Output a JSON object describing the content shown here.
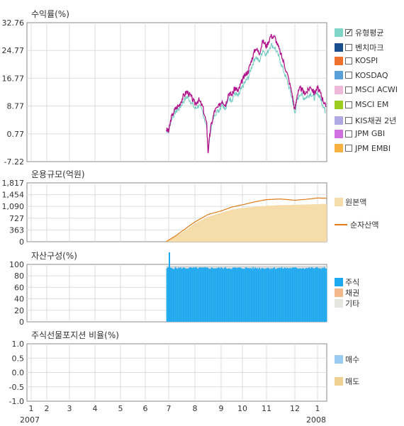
{
  "colors": {
    "grid": "#dddddd",
    "axis": "#888888",
    "return_line": "#b0148c",
    "benchmark_line": "#6fcac0",
    "nav_line": "#e07a12",
    "aum_area": "#f5dca8",
    "stock_bar": "#1ca9f0",
    "bond_bar": "#f4b98a",
    "other_bar": "#d9d9d9",
    "buy": "#99ccf0",
    "sell": "#f0d090"
  },
  "chart_data": [
    {
      "type": "line",
      "title": "수익률(%)",
      "yticks": [
        "32.76",
        "24.77",
        "16.77",
        "8.77",
        "0.77",
        "-7.22"
      ],
      "ylim": [
        -7.22,
        32.76
      ],
      "x_axis": "month index 1..13.5 (1 = Jan 2007)",
      "series": [
        {
          "name": "유형평균",
          "x": [
            6.9,
            7.0,
            7.1,
            7.25,
            7.4,
            7.55,
            7.7,
            7.85,
            8.0,
            8.15,
            8.3,
            8.45,
            8.5,
            8.6,
            8.75,
            8.9,
            9.05,
            9.2,
            9.35,
            9.5,
            9.65,
            9.8,
            9.95,
            10.1,
            10.25,
            10.4,
            10.55,
            10.7,
            10.85,
            11.0,
            11.15,
            11.3,
            11.45,
            11.6,
            11.75,
            11.9,
            12.0,
            12.1,
            12.25,
            12.4,
            12.55,
            12.7,
            12.85,
            13.0,
            13.15,
            13.3,
            13.45
          ],
          "values": [
            2.0,
            1.5,
            5.5,
            8.0,
            9.0,
            11.5,
            13.0,
            11.5,
            9.5,
            10.5,
            8.5,
            3.5,
            -4.5,
            2.5,
            7.5,
            8.5,
            10.5,
            9.0,
            12.5,
            12.0,
            14.0,
            13.0,
            15.5,
            17.5,
            19.0,
            22.5,
            25.5,
            24.0,
            27.5,
            26.0,
            29.0,
            28.5,
            25.0,
            21.5,
            17.5,
            12.5,
            7.5,
            12.0,
            14.0,
            12.5,
            13.0,
            14.5,
            12.5,
            14.0,
            12.5,
            10.5,
            8.5
          ]
        },
        {
          "name": "benchmark",
          "x": [
            6.9,
            7.0,
            7.1,
            7.25,
            7.4,
            7.55,
            7.7,
            7.85,
            8.0,
            8.15,
            8.3,
            8.45,
            8.5,
            8.6,
            8.75,
            8.9,
            9.05,
            9.2,
            9.35,
            9.5,
            9.65,
            9.8,
            9.95,
            10.1,
            10.25,
            10.4,
            10.55,
            10.7,
            10.85,
            11.0,
            11.15,
            11.3,
            11.45,
            11.6,
            11.75,
            11.9,
            12.0,
            12.1,
            12.25,
            12.4,
            12.55,
            12.7,
            12.85,
            13.0,
            13.15,
            13.3,
            13.45
          ],
          "values": [
            2.0,
            1.5,
            5.0,
            7.0,
            8.0,
            10.0,
            11.5,
            10.0,
            8.0,
            9.0,
            7.0,
            2.5,
            -4.0,
            2.0,
            6.5,
            7.5,
            9.5,
            8.0,
            11.0,
            10.5,
            12.5,
            11.5,
            13.5,
            15.5,
            17.0,
            20.5,
            23.0,
            21.5,
            25.0,
            23.5,
            26.5,
            25.5,
            22.5,
            19.0,
            15.5,
            11.0,
            6.5,
            10.5,
            12.5,
            11.0,
            11.5,
            12.5,
            11.0,
            12.5,
            11.0,
            9.0,
            7.0
          ]
        }
      ]
    },
    {
      "type": "area",
      "title": "운용규모(억원)",
      "yticks": [
        "1,817",
        "1,454",
        "1,090",
        "727",
        "363",
        "0"
      ],
      "ylim": [
        0,
        1817
      ],
      "series": [
        {
          "name": "원본액",
          "x": [
            6.9,
            7.3,
            7.7,
            8.0,
            8.5,
            9.0,
            9.5,
            10.0,
            10.5,
            11.0,
            11.5,
            12.0,
            12.5,
            13.0,
            13.5
          ],
          "values": [
            0,
            180,
            390,
            560,
            770,
            890,
            990,
            1040,
            1080,
            1110,
            1130,
            1140,
            1150,
            1160,
            1170
          ]
        },
        {
          "name": "순자산액",
          "x": [
            6.9,
            7.3,
            7.7,
            8.0,
            8.5,
            9.0,
            9.5,
            10.0,
            10.5,
            11.0,
            11.5,
            12.0,
            12.5,
            13.0,
            13.5
          ],
          "values": [
            0,
            200,
            440,
            610,
            840,
            950,
            1070,
            1140,
            1230,
            1300,
            1320,
            1280,
            1310,
            1350,
            1340
          ]
        }
      ]
    },
    {
      "type": "bar",
      "title": "자산구성(%)",
      "yticks": [
        "100",
        "80",
        "60",
        "40",
        "20",
        "0"
      ],
      "ylim": [
        0,
        105
      ],
      "x_start": 6.9,
      "x_end": 13.5,
      "spike": {
        "x": 7.0,
        "value": 120
      },
      "series": [
        {
          "name": "주식",
          "values": 96
        },
        {
          "name": "채권",
          "values": 0
        },
        {
          "name": "기타",
          "values": 4
        }
      ]
    },
    {
      "type": "bar",
      "title": "주식선물포지션 비율(%)",
      "yticks": [
        "1.0",
        "0.5",
        "0.0",
        "-0.5",
        "-1.0"
      ],
      "ylim": [
        -1.0,
        1.0
      ],
      "series": [
        {
          "name": "매수",
          "values": []
        },
        {
          "name": "매도",
          "values": []
        }
      ]
    }
  ],
  "x_axis": {
    "ticks": [
      "1",
      "2",
      "3",
      "4",
      "5",
      "6",
      "7",
      "8",
      "9",
      "10",
      "11",
      "12",
      "2008"
    ],
    "ticks_last": "1",
    "year_start": "2007",
    "year_end": "2008"
  },
  "legend": {
    "returns": [
      {
        "label": "유형평균",
        "color": "#7fd6c8",
        "checked": true
      },
      {
        "label": "벤치마크",
        "color": "#1a4f8f",
        "checked": false
      },
      {
        "label": "KOSPI",
        "color": "#f07030",
        "checked": false
      },
      {
        "label": "KOSDAQ",
        "color": "#5aa0d8",
        "checked": false
      },
      {
        "label": "MSCI ACWI",
        "color": "#f0b8d8",
        "checked": false
      },
      {
        "label": "MSCI EM",
        "color": "#9ccc20",
        "checked": false
      },
      {
        "label": "KIS채권 2년",
        "color": "#b0a8e0",
        "checked": false
      },
      {
        "label": "JPM GBI",
        "color": "#d070e0",
        "checked": false
      },
      {
        "label": "JPM EMBI",
        "color": "#f8b040",
        "checked": false
      }
    ],
    "aum": [
      {
        "label": "원본액",
        "color": "#f5dca8"
      },
      {
        "label": "순자산액",
        "color": "#e07a12"
      }
    ],
    "assets": [
      {
        "label": "주식",
        "color": "#1ca9f0"
      },
      {
        "label": "채권",
        "color": "#f4b98a"
      },
      {
        "label": "기타",
        "color": "#e6e6e0"
      }
    ],
    "futures": [
      {
        "label": "매수",
        "color": "#99ccf0"
      },
      {
        "label": "매도",
        "color": "#f0d090"
      }
    ]
  }
}
